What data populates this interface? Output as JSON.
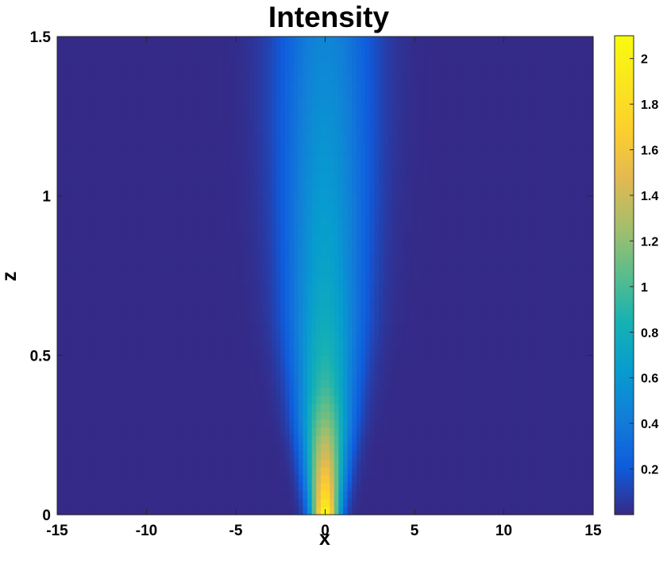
{
  "chart_data": {
    "type": "heatmap",
    "title": "Intensity",
    "xlabel": "x",
    "ylabel": "z",
    "xlim": [
      -15,
      15
    ],
    "ylim": [
      0,
      1.5
    ],
    "x_ticks": [
      -15,
      -10,
      -5,
      0,
      5,
      10,
      15
    ],
    "y_ticks": [
      0,
      0.5,
      1,
      1.5
    ],
    "x_tick_labels": [
      "-15",
      "-10",
      "-5",
      "0",
      "5",
      "10",
      "15"
    ],
    "y_tick_labels": [
      "0",
      "0.5",
      "1",
      "1.5"
    ],
    "colormap": "parula",
    "color_range": [
      0,
      2.1
    ],
    "colorbar": {
      "ticks": [
        0.2,
        0.4,
        0.6,
        0.8,
        1,
        1.2,
        1.4,
        1.6,
        1.8,
        2
      ],
      "tick_labels": [
        "0.2",
        "0.4",
        "0.6",
        "0.8",
        "1",
        "1.2",
        "1.4",
        "1.6",
        "1.8",
        "2"
      ]
    },
    "beam_profile": {
      "z": [
        0,
        0.05,
        0.1,
        0.2,
        0.3,
        0.4,
        0.5,
        0.6,
        0.75,
        1.0,
        1.25,
        1.5
      ],
      "peak_intensity": [
        2.1,
        1.85,
        1.68,
        1.4,
        1.15,
        0.96,
        0.86,
        0.78,
        0.7,
        0.62,
        0.55,
        0.48
      ],
      "center_x": [
        0,
        0,
        0,
        0,
        0,
        0,
        0,
        0,
        0,
        0,
        0,
        0
      ],
      "half_width_x": [
        0.75,
        0.85,
        0.95,
        1.15,
        1.4,
        1.6,
        1.8,
        2.0,
        2.15,
        2.35,
        2.5,
        2.6
      ]
    }
  }
}
